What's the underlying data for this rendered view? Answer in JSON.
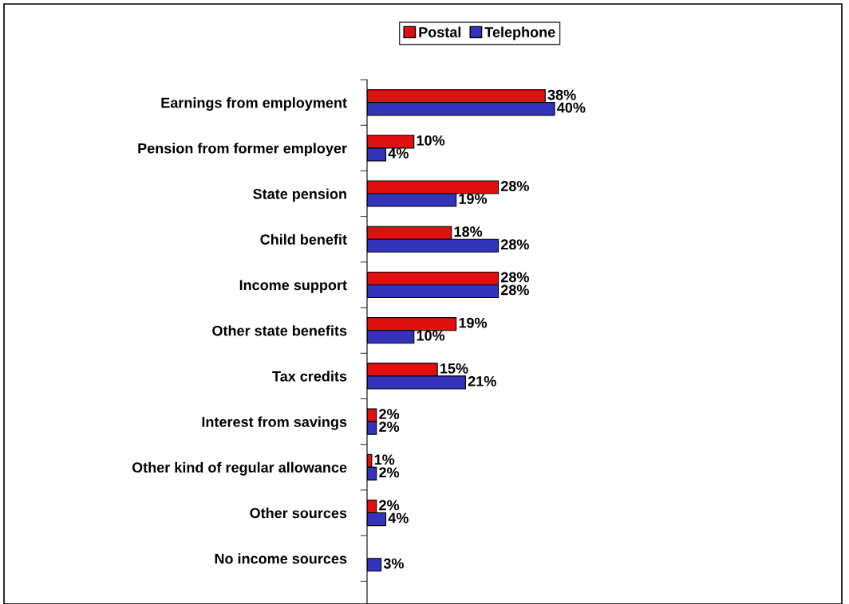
{
  "chart_data": {
    "type": "bar",
    "orientation": "horizontal",
    "categories": [
      "Earnings from employment",
      "Pension from former employer",
      "State pension",
      "Child benefit",
      "Income support",
      "Other state benefits",
      "Tax credits",
      "Interest from savings",
      "Other kind of regular allowance",
      "Other sources",
      "No income sources"
    ],
    "series": [
      {
        "name": "Postal",
        "color": "#e01010",
        "values": [
          38,
          10,
          28,
          18,
          28,
          19,
          15,
          2,
          1,
          2,
          null
        ],
        "value_labels": [
          "38%",
          "10%",
          "28%",
          "18%",
          "28%",
          "19%",
          "15%",
          "2%",
          "1%",
          "2%",
          null
        ]
      },
      {
        "name": "Telephone",
        "color": "#3333bb",
        "values": [
          40,
          4,
          19,
          28,
          28,
          10,
          21,
          2,
          2,
          4,
          3
        ],
        "value_labels": [
          "40%",
          "4%",
          "19%",
          "28%",
          "28%",
          "10%",
          "21%",
          "2%",
          "2%",
          "4%",
          "3%"
        ]
      }
    ],
    "legend": "top",
    "grid": false,
    "tick_labels": "y"
  }
}
